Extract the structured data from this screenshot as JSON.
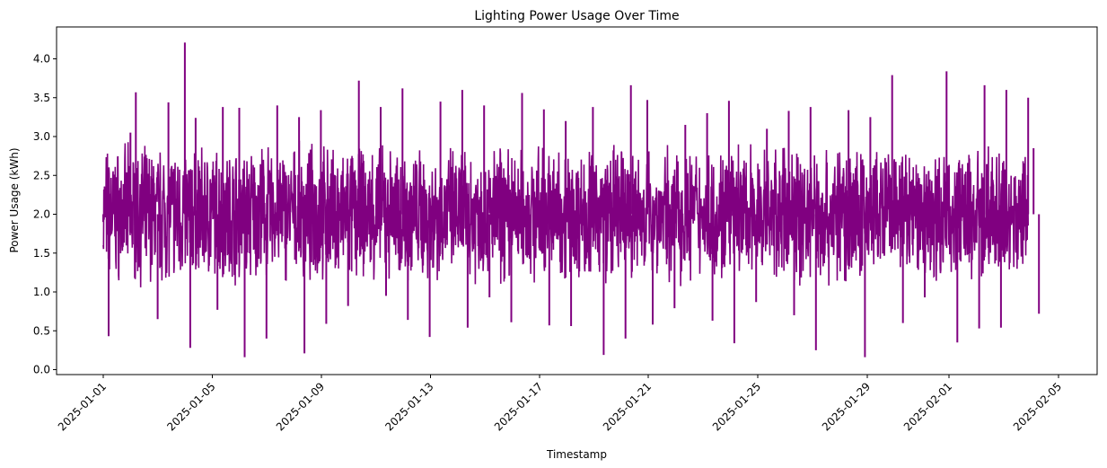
{
  "chart_data": {
    "type": "line",
    "title": "Lighting Power Usage Over Time",
    "xlabel": "Timestamp",
    "ylabel": "Power Usage (kWh)",
    "x_start": "2025-01-01",
    "x_end": "2025-02-04",
    "xlim": [
      "2025-01-01",
      "2025-02-05"
    ],
    "ylim": [
      0.0,
      4.3
    ],
    "xticks": [
      "2025-01-01",
      "2025-01-05",
      "2025-01-09",
      "2025-01-13",
      "2025-01-17",
      "2025-01-21",
      "2025-01-25",
      "2025-01-29",
      "2025-02-01",
      "2025-02-05"
    ],
    "yticks": [
      "0.0",
      "0.5",
      "1.0",
      "1.5",
      "2.0",
      "2.5",
      "3.0",
      "3.5",
      "4.0"
    ],
    "grid": false,
    "legend": "none",
    "series": [
      {
        "color": "#800080",
        "points": [
          [
            "2025-01-01",
            1.9
          ],
          [
            "2025-01-01",
            0.43
          ],
          [
            "2025-01-01",
            2.45
          ],
          [
            "2025-01-02",
            3.05
          ],
          [
            "2025-01-02",
            3.57
          ],
          [
            "2025-01-03",
            3.44
          ],
          [
            "2025-01-03",
            0.65
          ],
          [
            "2025-01-04",
            0.28
          ],
          [
            "2025-01-04",
            3.24
          ],
          [
            "2025-01-04",
            4.21
          ],
          [
            "2025-01-05",
            0.77
          ],
          [
            "2025-01-05",
            3.38
          ],
          [
            "2025-01-06",
            3.37
          ],
          [
            "2025-01-06",
            0.16
          ],
          [
            "2025-01-07",
            3.4
          ],
          [
            "2025-01-07",
            0.4
          ],
          [
            "2025-01-08",
            3.25
          ],
          [
            "2025-01-08",
            0.21
          ],
          [
            "2025-01-09",
            3.34
          ],
          [
            "2025-01-09",
            0.59
          ],
          [
            "2025-01-10",
            3.72
          ],
          [
            "2025-01-10",
            0.82
          ],
          [
            "2025-01-11",
            3.38
          ],
          [
            "2025-01-11",
            0.95
          ],
          [
            "2025-01-12",
            3.62
          ],
          [
            "2025-01-12",
            0.64
          ],
          [
            "2025-01-13",
            3.45
          ],
          [
            "2025-01-13",
            0.42
          ],
          [
            "2025-01-14",
            3.6
          ],
          [
            "2025-01-14",
            0.54
          ],
          [
            "2025-01-15",
            3.4
          ],
          [
            "2025-01-15",
            0.93
          ],
          [
            "2025-01-16",
            3.56
          ],
          [
            "2025-01-16",
            0.61
          ],
          [
            "2025-01-17",
            3.35
          ],
          [
            "2025-01-17",
            0.57
          ],
          [
            "2025-01-18",
            3.2
          ],
          [
            "2025-01-18",
            0.56
          ],
          [
            "2025-01-19",
            0.19
          ],
          [
            "2025-01-19",
            3.38
          ],
          [
            "2025-01-20",
            0.4
          ],
          [
            "2025-01-20",
            3.66
          ],
          [
            "2025-01-21",
            3.47
          ],
          [
            "2025-01-21",
            0.58
          ],
          [
            "2025-01-22",
            3.15
          ],
          [
            "2025-01-22",
            0.79
          ],
          [
            "2025-01-23",
            3.3
          ],
          [
            "2025-01-23",
            0.63
          ],
          [
            "2025-01-24",
            3.46
          ],
          [
            "2025-01-24",
            0.34
          ],
          [
            "2025-01-25",
            3.1
          ],
          [
            "2025-01-25",
            0.87
          ],
          [
            "2025-01-26",
            3.33
          ],
          [
            "2025-01-26",
            0.7
          ],
          [
            "2025-01-27",
            3.38
          ],
          [
            "2025-01-27",
            0.25
          ],
          [
            "2025-01-28",
            3.34
          ],
          [
            "2025-01-29",
            0.16
          ],
          [
            "2025-01-29",
            3.25
          ],
          [
            "2025-01-30",
            0.6
          ],
          [
            "2025-01-30",
            3.79
          ],
          [
            "2025-01-31",
            0.93
          ],
          [
            "2025-02-01",
            0.35
          ],
          [
            "2025-02-01",
            3.84
          ],
          [
            "2025-02-02",
            0.53
          ],
          [
            "2025-02-02",
            3.66
          ],
          [
            "2025-02-03",
            0.54
          ],
          [
            "2025-02-03",
            3.6
          ],
          [
            "2025-02-04",
            0.72
          ],
          [
            "2025-02-04",
            3.5
          ],
          [
            "2025-02-04",
            2.85
          ]
        ]
      }
    ]
  }
}
